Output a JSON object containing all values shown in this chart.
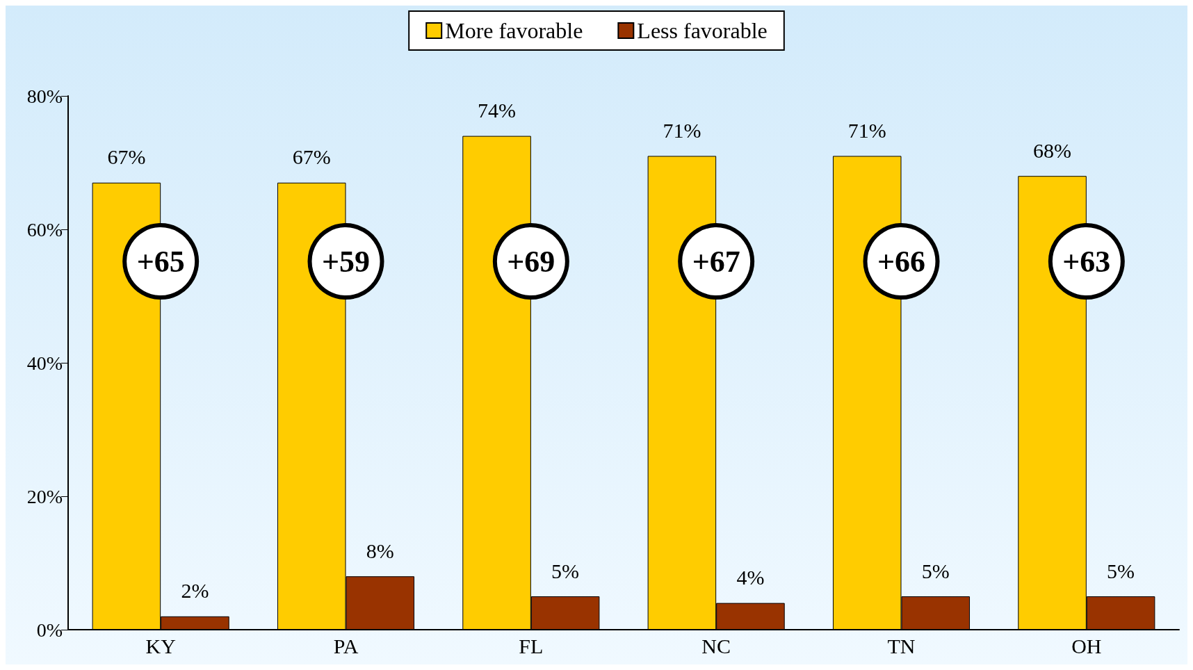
{
  "chart_data": {
    "type": "bar",
    "categories": [
      "KY",
      "PA",
      "FL",
      "NC",
      "TN",
      "OH"
    ],
    "series": [
      {
        "name": "More favorable",
        "color": "#ffcc00",
        "values": [
          67,
          67,
          74,
          71,
          71,
          68
        ],
        "value_labels": [
          "67%",
          "67%",
          "74%",
          "71%",
          "71%",
          "68%"
        ]
      },
      {
        "name": "Less favorable",
        "color": "#993300",
        "values": [
          2,
          8,
          5,
          4,
          5,
          5
        ],
        "value_labels": [
          "2%",
          "8%",
          "5%",
          "4%",
          "5%",
          "5%"
        ]
      }
    ],
    "ylim": [
      0,
      80
    ],
    "yticks": [
      {
        "value": 0,
        "label": "0%"
      },
      {
        "value": 20,
        "label": "20%"
      },
      {
        "value": 40,
        "label": "40%"
      },
      {
        "value": 60,
        "label": "60%"
      },
      {
        "value": 80,
        "label": "80%"
      }
    ],
    "grid": false,
    "legend": "top",
    "annotations": [
      "+65",
      "+59",
      "+69",
      "+67",
      "+66",
      "+63"
    ]
  }
}
